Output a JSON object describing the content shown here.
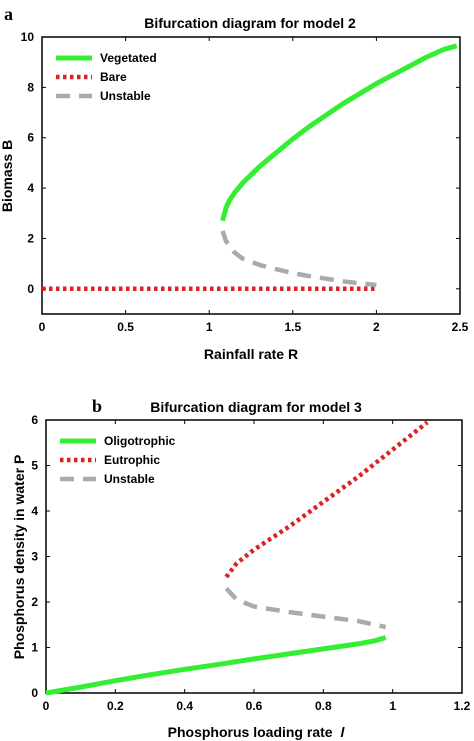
{
  "figure": {
    "background": "#ffffff"
  },
  "chart_data": [
    {
      "panel_letter": "a",
      "type": "line",
      "title": "Bifurcation diagram for model 2",
      "xlabel": "Rainfall rate R",
      "ylabel": "Biomass B",
      "xlim": [
        0,
        2.5
      ],
      "ylim": [
        -1,
        10
      ],
      "xticks": [
        0,
        0.5,
        1,
        1.5,
        2,
        2.5
      ],
      "yticks": [
        0,
        2,
        4,
        6,
        8,
        10
      ],
      "xtick_labels": [
        "0",
        "0.5",
        "1",
        "1.5",
        "2",
        "2.5"
      ],
      "ytick_labels": [
        "0",
        "2",
        "4",
        "6",
        "8",
        "10"
      ],
      "legend_position": "top-left",
      "series": [
        {
          "name": "Vegetated",
          "style": "solid",
          "color": "#33ee33",
          "x": [
            1.08,
            1.1,
            1.12,
            1.15,
            1.2,
            1.3,
            1.4,
            1.5,
            1.6,
            1.7,
            1.8,
            1.9,
            2.0,
            2.1,
            2.2,
            2.3,
            2.4,
            2.48
          ],
          "y": [
            2.7,
            3.2,
            3.5,
            3.8,
            4.2,
            4.85,
            5.4,
            5.95,
            6.45,
            6.9,
            7.35,
            7.75,
            8.15,
            8.5,
            8.85,
            9.2,
            9.5,
            9.65
          ]
        },
        {
          "name": "Bare",
          "style": "dotted",
          "color": "#dd2222",
          "x": [
            0,
            0.5,
            1.0,
            1.5,
            2.0
          ],
          "y": [
            0,
            0,
            0,
            0,
            0
          ]
        },
        {
          "name": "Unstable",
          "style": "dashed",
          "color": "#aaaaaa",
          "x": [
            1.08,
            1.1,
            1.15,
            1.2,
            1.3,
            1.4,
            1.5,
            1.6,
            1.7,
            1.8,
            1.9,
            2.0
          ],
          "y": [
            2.3,
            1.9,
            1.45,
            1.2,
            0.95,
            0.78,
            0.63,
            0.5,
            0.4,
            0.3,
            0.22,
            0.15
          ]
        }
      ]
    },
    {
      "panel_letter": "b",
      "type": "line",
      "title": "Bifurcation diagram for model 3",
      "xlabel": "Phosphorus loading rate",
      "xlabel_symbol": "l",
      "ylabel": "Phosphorus density in water P",
      "xlim": [
        0,
        1.2
      ],
      "ylim": [
        0,
        6
      ],
      "xticks": [
        0,
        0.2,
        0.4,
        0.6,
        0.8,
        1,
        1.2
      ],
      "yticks": [
        0,
        1,
        2,
        3,
        4,
        5,
        6
      ],
      "xtick_labels": [
        "0",
        "0.2",
        "0.4",
        "0.6",
        "0.8",
        "1",
        "1.2"
      ],
      "ytick_labels": [
        "0",
        "1",
        "2",
        "3",
        "4",
        "5",
        "6"
      ],
      "legend_position": "top-left",
      "series": [
        {
          "name": "Oligotrophic",
          "style": "solid",
          "color": "#33ee33",
          "x": [
            0,
            0.1,
            0.2,
            0.3,
            0.4,
            0.5,
            0.6,
            0.7,
            0.8,
            0.9,
            0.95,
            0.98
          ],
          "y": [
            0,
            0.13,
            0.27,
            0.4,
            0.52,
            0.63,
            0.75,
            0.86,
            0.97,
            1.08,
            1.15,
            1.22
          ]
        },
        {
          "name": "Eutrophic",
          "style": "dotted",
          "color": "#dd2222",
          "x": [
            0.52,
            0.55,
            0.6,
            0.7,
            0.8,
            0.9,
            1.0,
            1.1
          ],
          "y": [
            2.55,
            2.85,
            3.15,
            3.65,
            4.2,
            4.75,
            5.35,
            5.95
          ]
        },
        {
          "name": "Unstable",
          "style": "dashed",
          "color": "#aaaaaa",
          "x": [
            0.52,
            0.55,
            0.6,
            0.7,
            0.8,
            0.9,
            0.98
          ],
          "y": [
            2.3,
            2.05,
            1.9,
            1.78,
            1.68,
            1.58,
            1.45
          ]
        }
      ]
    }
  ]
}
